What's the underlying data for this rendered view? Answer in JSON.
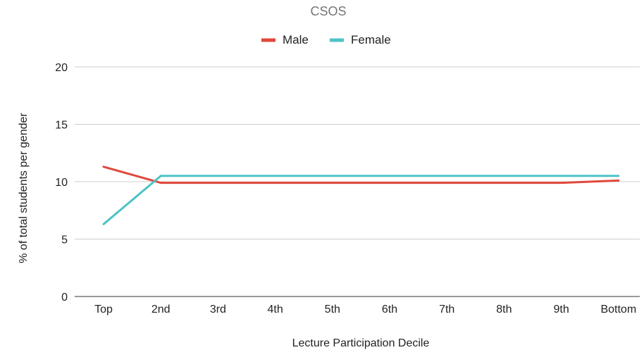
{
  "chart_data": {
    "type": "line",
    "title": "CSOS",
    "xlabel": "Lecture Participation Decile",
    "ylabel": "% of total students per gender",
    "categories": [
      "Top",
      "2nd",
      "3rd",
      "4th",
      "5th",
      "6th",
      "7th",
      "8th",
      "9th",
      "Bottom"
    ],
    "ylim": [
      0,
      20
    ],
    "yticks": [
      0,
      5,
      10,
      15,
      20
    ],
    "grid": true,
    "legend_position": "top",
    "series": [
      {
        "name": "Male",
        "color": "#e0483b",
        "values": [
          11.3,
          9.9,
          9.9,
          9.9,
          9.9,
          9.9,
          9.9,
          9.9,
          9.9,
          10.1
        ]
      },
      {
        "name": "Female",
        "color": "#4fc2c6",
        "values": [
          6.3,
          10.5,
          10.5,
          10.5,
          10.5,
          10.5,
          10.5,
          10.5,
          10.5,
          10.5
        ]
      }
    ]
  }
}
